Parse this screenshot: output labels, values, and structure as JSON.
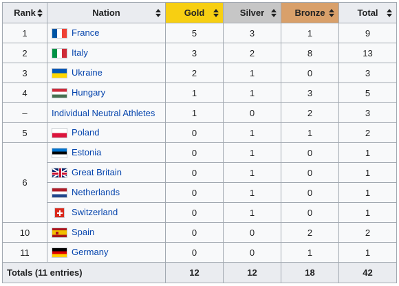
{
  "headers": {
    "rank": "Rank",
    "nation": "Nation",
    "gold": "Gold",
    "silver": "Silver",
    "bronze": "Bronze",
    "total": "Total"
  },
  "colors": {
    "gold_header": "#f7cf12",
    "silver_header": "#c6c6c6",
    "bronze_header": "#d9a06a",
    "link": "#0645ad"
  },
  "rows": [
    {
      "rank": "1",
      "nation": "France",
      "flag": "france-flag-icon",
      "gold": "5",
      "silver": "3",
      "bronze": "1",
      "total": "9"
    },
    {
      "rank": "2",
      "nation": "Italy",
      "flag": "italy-flag-icon",
      "gold": "3",
      "silver": "2",
      "bronze": "8",
      "total": "13"
    },
    {
      "rank": "3",
      "nation": "Ukraine",
      "flag": "ukraine-flag-icon",
      "gold": "2",
      "silver": "1",
      "bronze": "0",
      "total": "3"
    },
    {
      "rank": "4",
      "nation": "Hungary",
      "flag": "hungary-flag-icon",
      "gold": "1",
      "silver": "1",
      "bronze": "3",
      "total": "5"
    },
    {
      "rank": "–",
      "nation": "Individual Neutral Athletes",
      "flag": "",
      "gold": "1",
      "silver": "0",
      "bronze": "2",
      "total": "3"
    },
    {
      "rank": "5",
      "nation": "Poland",
      "flag": "poland-flag-icon",
      "gold": "0",
      "silver": "1",
      "bronze": "1",
      "total": "2"
    },
    {
      "rank": "6",
      "nation": "Estonia",
      "flag": "estonia-flag-icon",
      "gold": "0",
      "silver": "1",
      "bronze": "0",
      "total": "1"
    },
    {
      "rank": "",
      "nation": "Great Britain",
      "flag": "uk-flag-icon",
      "gold": "0",
      "silver": "1",
      "bronze": "0",
      "total": "1"
    },
    {
      "rank": "",
      "nation": "Netherlands",
      "flag": "netherlands-flag-icon",
      "gold": "0",
      "silver": "1",
      "bronze": "0",
      "total": "1"
    },
    {
      "rank": "",
      "nation": "Switzerland",
      "flag": "switzerland-flag-icon",
      "gold": "0",
      "silver": "1",
      "bronze": "0",
      "total": "1"
    },
    {
      "rank": "10",
      "nation": "Spain",
      "flag": "spain-flag-icon",
      "gold": "0",
      "silver": "0",
      "bronze": "2",
      "total": "2"
    },
    {
      "rank": "11",
      "nation": "Germany",
      "flag": "germany-flag-icon",
      "gold": "0",
      "silver": "0",
      "bronze": "1",
      "total": "1"
    }
  ],
  "totals": {
    "label": "Totals (11 entries)",
    "gold": "12",
    "silver": "12",
    "bronze": "18",
    "total": "42"
  }
}
